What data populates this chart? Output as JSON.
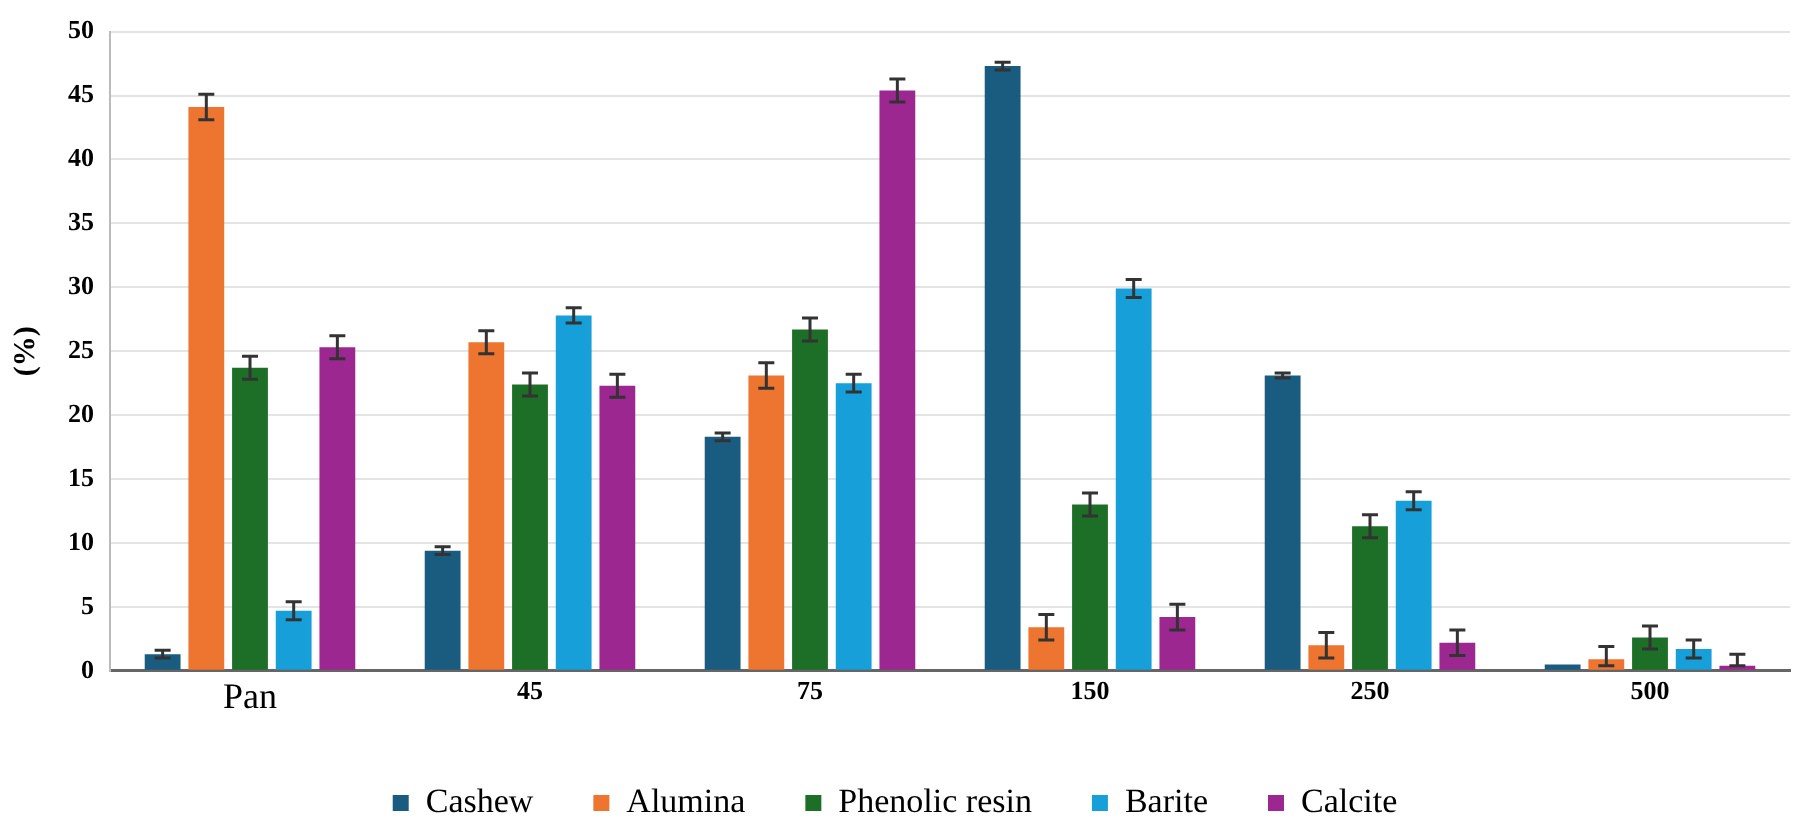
{
  "chart_data": {
    "type": "bar",
    "ylabel": "(%)",
    "categories": [
      "Pan",
      "45",
      "75",
      "150",
      "250",
      "500"
    ],
    "series": [
      {
        "name": "Cashew",
        "color": "#1a5b80",
        "values": [
          1.3,
          9.4,
          18.3,
          47.3,
          23.1,
          0.5
        ],
        "errors": [
          0.3,
          0.3,
          0.3,
          0.3,
          0.2,
          null
        ]
      },
      {
        "name": "Alumina",
        "color": "#ed7530",
        "values": [
          44.1,
          25.7,
          23.1,
          3.4,
          2.0,
          0.9
        ],
        "errors": [
          1.0,
          0.9,
          1.0,
          1.0,
          1.0,
          [
            0.4,
            1.9
          ]
        ]
      },
      {
        "name": "Phenolic resin",
        "color": "#1d6e26",
        "values": [
          23.7,
          22.4,
          26.7,
          13.0,
          11.3,
          2.6
        ],
        "errors": [
          0.9,
          0.9,
          0.9,
          0.9,
          0.9,
          0.9
        ]
      },
      {
        "name": "Barite",
        "color": "#169fd8",
        "values": [
          4.7,
          27.8,
          22.5,
          29.9,
          13.3,
          1.7
        ],
        "errors": [
          0.7,
          0.6,
          0.7,
          0.7,
          0.7,
          0.7
        ]
      },
      {
        "name": "Calcite",
        "color": "#9c2791",
        "values": [
          25.3,
          22.3,
          45.4,
          4.2,
          2.2,
          0.4
        ],
        "errors": [
          0.9,
          0.9,
          0.9,
          1.0,
          1.0,
          [
            0.4,
            1.3
          ]
        ]
      }
    ],
    "ylim": [
      0,
      50
    ],
    "yticks": [
      0,
      5,
      10,
      15,
      20,
      25,
      30,
      35,
      40,
      45,
      50
    ],
    "grid": "y",
    "legend": "bottom"
  }
}
